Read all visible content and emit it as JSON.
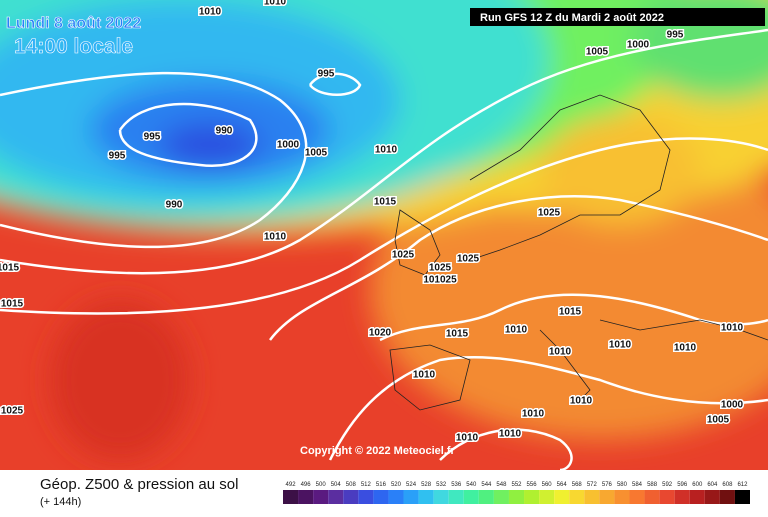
{
  "header": {
    "date": "Lundi 8 août 2022",
    "time": "14:00 locale",
    "run": "Run GFS 12 Z du Mardi 2 août 2022",
    "copyright": "Copyright © 2022 Meteociel.fr"
  },
  "footer": {
    "title": "Géop. Z500 & pression au sol",
    "lead": "(+ 144h)"
  },
  "isobar_labels": [
    "1010",
    "1010",
    "995",
    "1000",
    "1005",
    "995",
    "990",
    "995",
    "995",
    "1000",
    "1005",
    "1010",
    "990",
    "1015",
    "1025",
    "1010",
    "1025",
    "1025",
    "1025",
    "101025",
    "1015",
    "1015",
    "1020",
    "1015",
    "1010",
    "1015",
    "1010",
    "1010",
    "1010",
    "1010",
    "1010",
    "1010",
    "1000",
    "1005",
    "1010",
    "1010",
    "1010",
    "1025"
  ],
  "legend": {
    "values": [
      "492",
      "496",
      "500",
      "504",
      "508",
      "512",
      "516",
      "520",
      "524",
      "528",
      "532",
      "536",
      "540",
      "544",
      "548",
      "552",
      "556",
      "560",
      "564",
      "568",
      "572",
      "576",
      "580",
      "584",
      "588",
      "592",
      "596",
      "600",
      "604",
      "608",
      "612"
    ],
    "colors": [
      "#3c1046",
      "#4b1361",
      "#5a1a80",
      "#5b2ea0",
      "#4a3cc0",
      "#3a4ee0",
      "#2e66f0",
      "#2a80f8",
      "#2aa0f8",
      "#30c0f0",
      "#40d8e0",
      "#40e8c0",
      "#40f0a0",
      "#50f080",
      "#70f060",
      "#90f040",
      "#b0f030",
      "#d0f030",
      "#f0f030",
      "#f8d830",
      "#f8c030",
      "#f8a830",
      "#f89030",
      "#f87830",
      "#f06030",
      "#e84830",
      "#d03028",
      "#b82020",
      "#981818",
      "#701010",
      "#000000"
    ]
  }
}
